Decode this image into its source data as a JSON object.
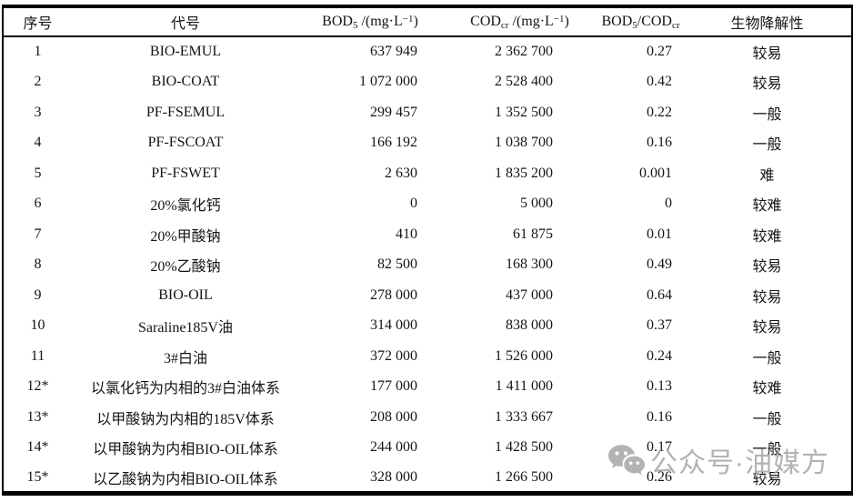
{
  "table": {
    "header": {
      "index": "序号",
      "code": "代号",
      "bod": {
        "main": "BOD",
        "sub": "5",
        "mid": " /(mg·L",
        "sup": "−1",
        "end": ")"
      },
      "cod": {
        "main": "COD",
        "sub": "cr",
        "mid": " /(mg·L",
        "sup": "−1",
        "end": ")"
      },
      "ratio": {
        "main": "BOD",
        "sub": "5",
        "mid": "/COD",
        "sub2": "cr"
      },
      "bio": "生物降解性"
    },
    "rows": [
      {
        "num": "1",
        "code": "BIO-EMUL",
        "bod": "637 949",
        "cod": "2 362 700",
        "ratio": "0.27",
        "bio": "较易"
      },
      {
        "num": "2",
        "code": "BIO-COAT",
        "bod": "1 072 000",
        "cod": "2 528 400",
        "ratio": "0.42",
        "bio": "较易"
      },
      {
        "num": "3",
        "code": "PF-FSEMUL",
        "bod": "299 457",
        "cod": "1 352 500",
        "ratio": "0.22",
        "bio": "一般"
      },
      {
        "num": "4",
        "code": "PF-FSCOAT",
        "bod": "166 192",
        "cod": "1 038 700",
        "ratio": "0.16",
        "bio": "一般"
      },
      {
        "num": "5",
        "code": "PF-FSWET",
        "bod": "2 630",
        "cod": "1 835 200",
        "ratio": "0.001",
        "bio": "难"
      },
      {
        "num": "6",
        "code": "20%氯化钙",
        "bod": "0",
        "cod": "5 000",
        "ratio": "0",
        "bio": "较难"
      },
      {
        "num": "7",
        "code": "20%甲酸钠",
        "bod": "410",
        "cod": "61 875",
        "ratio": "0.01",
        "bio": "较难"
      },
      {
        "num": "8",
        "code": "20%乙酸钠",
        "bod": "82 500",
        "cod": "168 300",
        "ratio": "0.49",
        "bio": "较易"
      },
      {
        "num": "9",
        "code": "BIO-OIL",
        "bod": "278 000",
        "cod": "437 000",
        "ratio": "0.64",
        "bio": "较易"
      },
      {
        "num": "10",
        "code": "Saraline185V油",
        "bod": "314 000",
        "cod": "838 000",
        "ratio": "0.37",
        "bio": "较易"
      },
      {
        "num": "11",
        "code": "3#白油",
        "bod": "372 000",
        "cod": "1 526 000",
        "ratio": "0.24",
        "bio": "一般"
      },
      {
        "num": "12*",
        "code": "以氯化钙为内相的3#白油体系",
        "bod": "177 000",
        "cod": "1 411 000",
        "ratio": "0.13",
        "bio": "较难"
      },
      {
        "num": "13*",
        "code": "以甲酸钠为内相的185V体系",
        "bod": "208 000",
        "cod": "1 333 667",
        "ratio": "0.16",
        "bio": "一般"
      },
      {
        "num": "14*",
        "code": "以甲酸钠为内相BIO-OIL体系",
        "bod": "244 000",
        "cod": "1 428 500",
        "ratio": "0.17",
        "bio": "一般"
      },
      {
        "num": "15*",
        "code": "以乙酸钠为内相BIO-OIL体系",
        "bod": "328 000",
        "cod": "1 266 500",
        "ratio": "0.26",
        "bio": "较易"
      }
    ]
  },
  "watermark": {
    "text": "公众号·油媒方",
    "color": "#a6a6a6",
    "icon": "wechat-icon"
  },
  "colors": {
    "text": "#151515",
    "border": "#000000",
    "background": "#ffffff"
  }
}
